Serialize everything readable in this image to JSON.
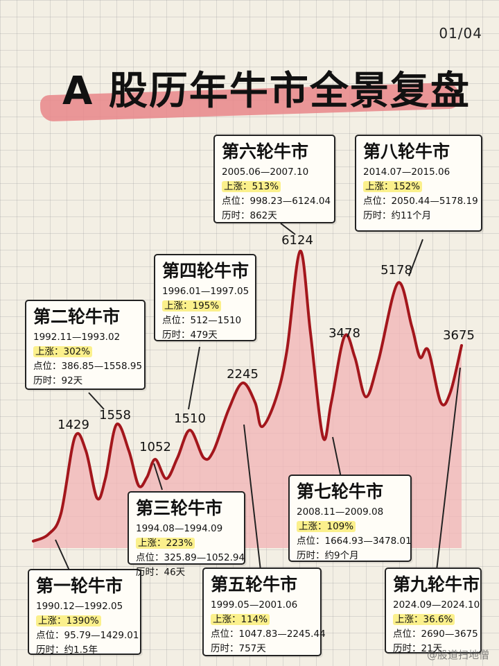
{
  "page_number": "01/04",
  "title": "A 股历年牛市全景复盘",
  "watermark": "@股道扫地僧",
  "colors": {
    "line": "#a3161c",
    "fill": "#f1b3b6",
    "highlight": "#fbf08c",
    "title_stroke": "#e7868a"
  },
  "chart_data": {
    "type": "area",
    "title": "A 股历年牛市全景复盘",
    "xlabel": "",
    "ylabel": "",
    "grid": true,
    "peaks": [
      {
        "label": "1429",
        "value": 1429
      },
      {
        "label": "1558",
        "value": 1558
      },
      {
        "label": "1052",
        "value": 1052
      },
      {
        "label": "1510",
        "value": 1510
      },
      {
        "label": "2245",
        "value": 2245
      },
      {
        "label": "6124",
        "value": 6124
      },
      {
        "label": "3478",
        "value": 3478
      },
      {
        "label": "5178",
        "value": 5178
      },
      {
        "label": "3675",
        "value": 3675
      }
    ]
  },
  "cards": [
    {
      "title": "第一轮牛市",
      "period": "1990.12—1992.05",
      "gain_label": "上涨：",
      "gain": "1390%",
      "points_label": "点位：",
      "points": "95.79—1429.01",
      "duration_label": "历时：",
      "duration": "约1.5年"
    },
    {
      "title": "第二轮牛市",
      "period": "1992.11—1993.02",
      "gain_label": "上涨：",
      "gain": "302%",
      "points_label": "点位：",
      "points": "386.85—1558.95",
      "duration_label": "历时：",
      "duration": "92天"
    },
    {
      "title": "第三轮牛市",
      "period": "1994.08—1994.09",
      "gain_label": "上涨：",
      "gain": "223%",
      "points_label": "点位：",
      "points": "325.89—1052.94",
      "duration_label": "历时：",
      "duration": "46天"
    },
    {
      "title": "第四轮牛市",
      "period": "1996.01—1997.05",
      "gain_label": "上涨：",
      "gain": "195%",
      "points_label": "点位：",
      "points": "512—1510",
      "duration_label": "历时：",
      "duration": "479天"
    },
    {
      "title": "第五轮牛市",
      "period": "1999.05—2001.06",
      "gain_label": "上涨：",
      "gain": "114%",
      "points_label": "点位：",
      "points": "1047.83—2245.44",
      "duration_label": "历时：",
      "duration": "757天"
    },
    {
      "title": "第六轮牛市",
      "period": "2005.06—2007.10",
      "gain_label": "上涨：",
      "gain": "513%",
      "points_label": "点位：",
      "points": "998.23—6124.04",
      "duration_label": "历时：",
      "duration": "862天"
    },
    {
      "title": "第七轮牛市",
      "period": "2008.11—2009.08",
      "gain_label": "上涨：",
      "gain": "109%",
      "points_label": "点位：",
      "points": "1664.93—3478.01",
      "duration_label": "历时：",
      "duration": "约9个月"
    },
    {
      "title": "第八轮牛市",
      "period": "2014.07—2015.06",
      "gain_label": "上涨：",
      "gain": "152%",
      "points_label": "点位：",
      "points": "2050.44—5178.19",
      "duration_label": "历时：",
      "duration": "约11个月"
    },
    {
      "title": "第九轮牛市",
      "period": "2024.09—2024.10",
      "gain_label": "上涨：",
      "gain": "36.6%",
      "points_label": "点位：",
      "points": "2690—3675",
      "duration_label": "历时：",
      "duration": "21天"
    }
  ]
}
